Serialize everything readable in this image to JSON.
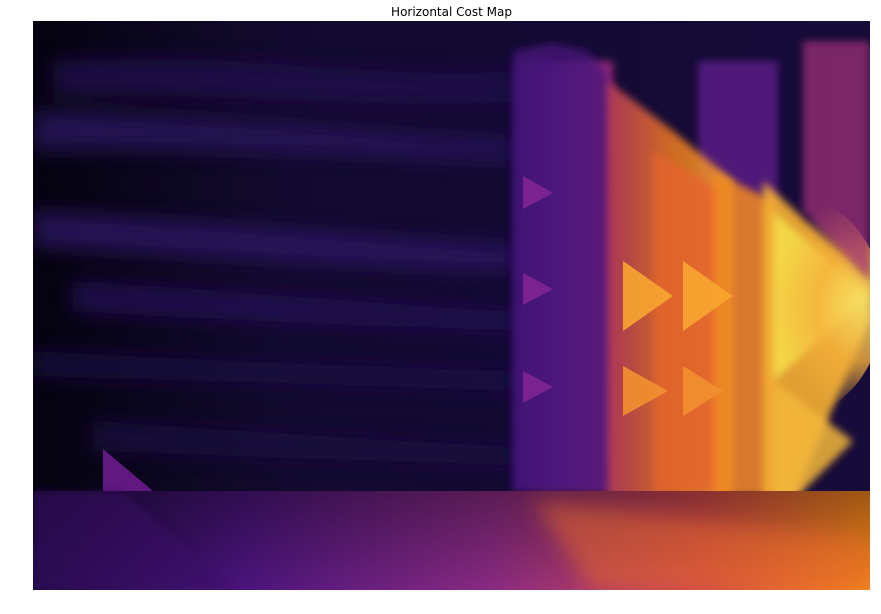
{
  "figure": {
    "title": "Horizontal Cost Map"
  },
  "chart_data": {
    "type": "heatmap",
    "title": "Horizontal Cost Map",
    "colormap": "inferno",
    "axes_visible": false,
    "colorbar": false,
    "value_range": [
      0.0,
      1.0
    ],
    "regions": [
      {
        "name": "left-dark-field",
        "level": 0.05
      },
      {
        "name": "left-haze-bands",
        "level": 0.15
      },
      {
        "name": "center-purple-columns",
        "level": 0.35
      },
      {
        "name": "right-orange-columns",
        "level": 0.7
      },
      {
        "name": "right-bright-triangle",
        "level": 0.95
      },
      {
        "name": "bottom-gradient-band",
        "level": 0.55
      }
    ],
    "colors": {
      "background_dark": "#0d0620",
      "deep_purple": "#2a0d5e",
      "purple": "#5c1a8a",
      "magenta": "#9c2c7c",
      "red_orange": "#d24a4a",
      "orange": "#f27c1c",
      "yellow": "#f5d94a"
    }
  }
}
